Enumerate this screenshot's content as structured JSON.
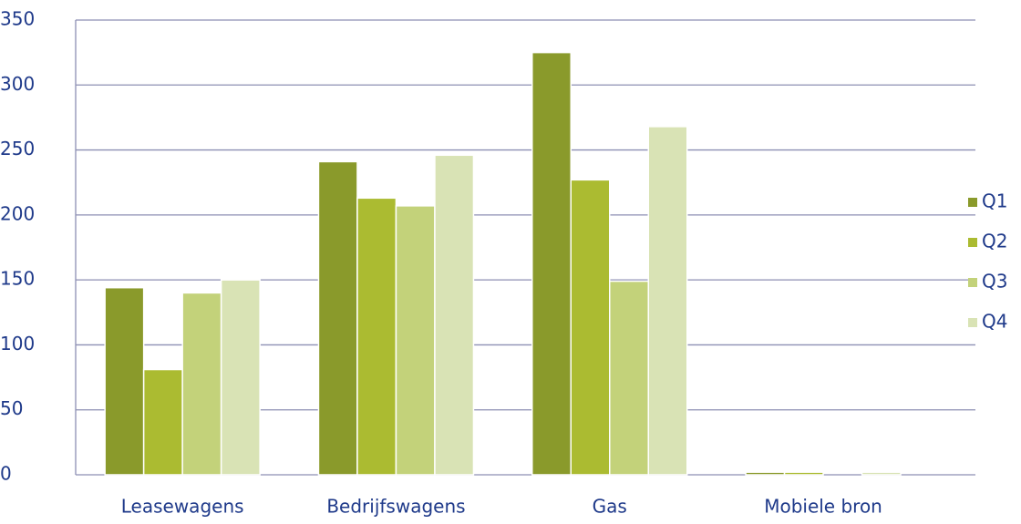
{
  "chart_data": {
    "type": "bar",
    "categories": [
      "Leasewagens",
      "Bedrijfswagens",
      "Gas",
      "Mobiele bron"
    ],
    "series": [
      {
        "name": "Q1",
        "color": "#8a9a2b",
        "values": [
          144,
          241,
          325,
          2
        ]
      },
      {
        "name": "Q2",
        "color": "#abbb31",
        "values": [
          81,
          213,
          227,
          2
        ]
      },
      {
        "name": "Q3",
        "color": "#c3d27a",
        "values": [
          140,
          207,
          149,
          0
        ]
      },
      {
        "name": "Q4",
        "color": "#d9e3b5",
        "values": [
          150,
          246,
          268,
          2
        ]
      }
    ],
    "ylim": [
      0,
      350
    ],
    "yticks": [
      0,
      50,
      100,
      150,
      200,
      250,
      300,
      350
    ],
    "grid": true,
    "legend": "right"
  }
}
